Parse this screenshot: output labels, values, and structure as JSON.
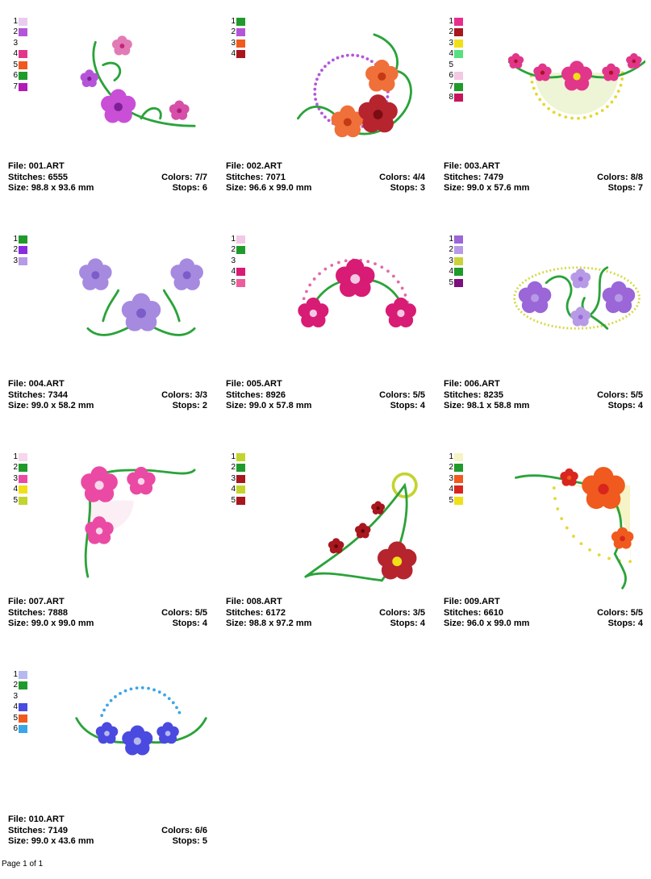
{
  "designs": [
    {
      "file": "File: 001.ART",
      "stitches": "Stitches: 6555",
      "colors": "Colors: 7/7",
      "size": "Size: 98.8 x 93.6 mm",
      "stops": "Stops: 6",
      "swatches": [
        {
          "n": "1",
          "c": "#e9cdf0"
        },
        {
          "n": "2",
          "c": "#b455d8"
        },
        {
          "n": "3",
          "c": ""
        },
        {
          "n": "4",
          "c": "#e2368a"
        },
        {
          "n": "5",
          "c": "#f05a1e"
        },
        {
          "n": "6",
          "c": "#1f9a2b"
        },
        {
          "n": "7",
          "c": "#b21ab8"
        }
      ]
    },
    {
      "file": "File: 002.ART",
      "stitches": "Stitches: 7071",
      "colors": "Colors: 4/4",
      "size": "Size: 96.6 x 99.0 mm",
      "stops": "Stops: 3",
      "swatches": [
        {
          "n": "1",
          "c": "#1f9a2b"
        },
        {
          "n": "2",
          "c": "#b455d8"
        },
        {
          "n": "3",
          "c": "#f05a1e"
        },
        {
          "n": "4",
          "c": "#a8161e"
        }
      ]
    },
    {
      "file": "File: 003.ART",
      "stitches": "Stitches: 7479",
      "colors": "Colors: 8/8",
      "size": "Size: 99.0 x 57.6 mm",
      "stops": "Stops: 7",
      "swatches": [
        {
          "n": "1",
          "c": "#e82d8f"
        },
        {
          "n": "2",
          "c": "#a8161e"
        },
        {
          "n": "3",
          "c": "#f0e018"
        },
        {
          "n": "4",
          "c": "#58e080"
        },
        {
          "n": "5",
          "c": ""
        },
        {
          "n": "6",
          "c": "#f3c8e4"
        },
        {
          "n": "7",
          "c": "#1f9a2b"
        },
        {
          "n": "8",
          "c": "#c8145a"
        }
      ]
    },
    {
      "file": "File: 004.ART",
      "stitches": "Stitches: 7344",
      "colors": "Colors: 3/3",
      "size": "Size: 99.0 x 58.2 mm",
      "stops": "Stops: 2",
      "swatches": [
        {
          "n": "1",
          "c": "#1f9a2b"
        },
        {
          "n": "2",
          "c": "#8a2be2"
        },
        {
          "n": "3",
          "c": "#b79ae6"
        }
      ]
    },
    {
      "file": "File: 005.ART",
      "stitches": "Stitches: 8926",
      "colors": "Colors: 5/5",
      "size": "Size: 99.0 x 57.8 mm",
      "stops": "Stops: 4",
      "swatches": [
        {
          "n": "1",
          "c": "#f3c8e4"
        },
        {
          "n": "2",
          "c": "#1f9a2b"
        },
        {
          "n": "3",
          "c": ""
        },
        {
          "n": "4",
          "c": "#d81b74"
        },
        {
          "n": "5",
          "c": "#ee5c9c"
        }
      ]
    },
    {
      "file": "File: 006.ART",
      "stitches": "Stitches: 8235",
      "colors": "Colors: 5/5",
      "size": "Size: 98.1 x 58.8 mm",
      "stops": "Stops: 4",
      "swatches": [
        {
          "n": "1",
          "c": "#9a66d8"
        },
        {
          "n": "2",
          "c": "#b79ae6"
        },
        {
          "n": "3",
          "c": "#c9d23a"
        },
        {
          "n": "4",
          "c": "#1f9a2b"
        },
        {
          "n": "5",
          "c": "#7d0f7e"
        }
      ]
    },
    {
      "file": "File: 007.ART",
      "stitches": "Stitches: 7888",
      "colors": "Colors: 5/5",
      "size": "Size: 99.0 x 99.0 mm",
      "stops": "Stops: 4",
      "swatches": [
        {
          "n": "1",
          "c": "#f6d8ea"
        },
        {
          "n": "2",
          "c": "#1f9a2b"
        },
        {
          "n": "3",
          "c": "#ea4aa4"
        },
        {
          "n": "4",
          "c": "#f0e018"
        },
        {
          "n": "5",
          "c": "#c3d42e"
        }
      ]
    },
    {
      "file": "File: 008.ART",
      "stitches": "Stitches: 6172",
      "colors": "Colors: 3/5",
      "size": "Size: 98.8 x 97.2 mm",
      "stops": "Stops: 4",
      "swatches": [
        {
          "n": "1",
          "c": "#c3d42e"
        },
        {
          "n": "2",
          "c": "#1f9a2b"
        },
        {
          "n": "3",
          "c": "#a8161e"
        },
        {
          "n": "4",
          "c": "#c3d42e"
        },
        {
          "n": "5",
          "c": "#a8161e"
        }
      ]
    },
    {
      "file": "File: 009.ART",
      "stitches": "Stitches: 6610",
      "colors": "Colors: 5/5",
      "size": "Size: 96.0 x 99.0 mm",
      "stops": "Stops: 4",
      "swatches": [
        {
          "n": "1",
          "c": "#f6f4c6"
        },
        {
          "n": "2",
          "c": "#1f9a2b"
        },
        {
          "n": "3",
          "c": "#f05a1e"
        },
        {
          "n": "4",
          "c": "#d8261e"
        },
        {
          "n": "5",
          "c": "#f0e018"
        }
      ]
    },
    {
      "file": "File: 010.ART",
      "stitches": "Stitches: 7149",
      "colors": "Colors: 6/6",
      "size": "Size: 99.0 x 43.6 mm",
      "stops": "Stops: 5",
      "swatches": [
        {
          "n": "1",
          "c": "#b7b9ee"
        },
        {
          "n": "2",
          "c": "#1f9a2b"
        },
        {
          "n": "3",
          "c": ""
        },
        {
          "n": "4",
          "c": "#4a4ae0"
        },
        {
          "n": "5",
          "c": "#f05a1e"
        },
        {
          "n": "6",
          "c": "#3aa6e8"
        }
      ]
    }
  ],
  "footer": "Page 1 of 1"
}
